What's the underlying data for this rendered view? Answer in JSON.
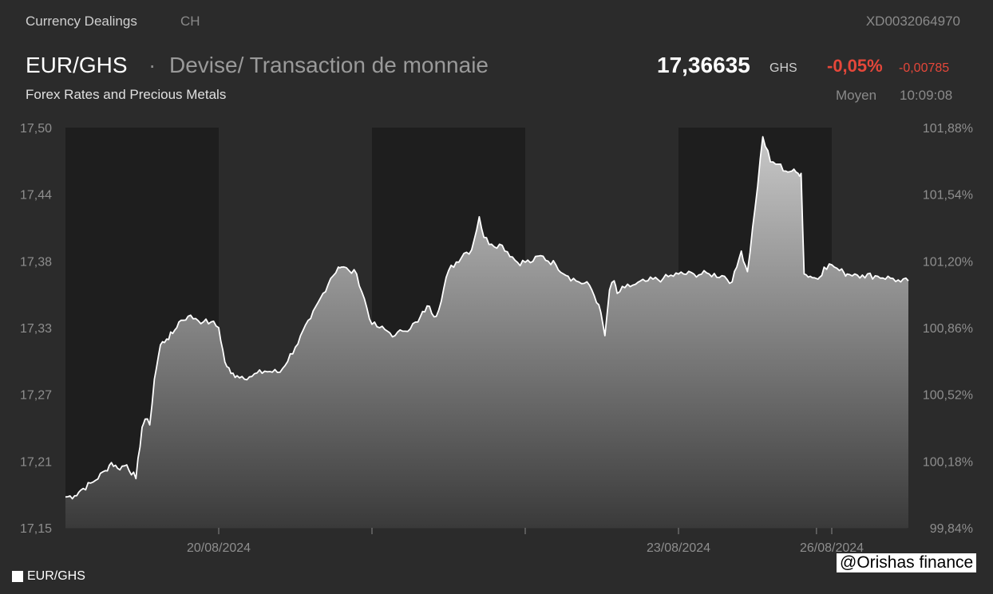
{
  "header": {
    "category": "Currency Dealings",
    "exchange": "CH",
    "isin": "XD0032064970",
    "symbol": "EUR/GHS",
    "separator": "·",
    "name": "Devise/ Transaction de monnaie",
    "subtitle": "Forex Rates and Precious Metals"
  },
  "quote": {
    "price": "17,36635",
    "currency": "GHS",
    "change_pct": "-0,05%",
    "change_abs": "-0,00785",
    "price_type": "Moyen",
    "time": "10:09:08"
  },
  "legend": {
    "label": "EUR/GHS"
  },
  "watermark": "@Orishas finance",
  "colors": {
    "background": "#2b2b2b",
    "night_band": "#1e1e1e",
    "line": "#ffffff",
    "negative": "#e5473a"
  },
  "chart_data": {
    "type": "area",
    "title": "EUR/GHS",
    "ylim": [
      17.15,
      17.5
    ],
    "y_ticks": [
      "17,50",
      "17,44",
      "17,38",
      "17,33",
      "17,27",
      "17,21",
      "17,15"
    ],
    "y_ticks_right": [
      "101,88%",
      "101,54%",
      "101,20%",
      "100,86%",
      "100,52%",
      "100,18%",
      "99,84%"
    ],
    "x_labels": [
      "20/08/2024",
      "23/08/2024",
      "26/08/2024"
    ],
    "xlim": [
      0,
      5.5
    ],
    "x_label_positions": [
      1,
      4,
      5
    ],
    "minor_x_ticks": [
      2,
      3,
      4.9
    ],
    "dark_bands": [
      [
        0,
        1
      ],
      [
        2,
        3
      ],
      [
        4,
        5
      ]
    ],
    "series": [
      {
        "name": "EUR/GHS",
        "x": [
          0,
          0.06,
          0.1,
          0.18,
          0.26,
          0.3,
          0.34,
          0.4,
          0.46,
          0.5,
          0.52,
          0.55,
          0.58,
          0.62,
          0.66,
          0.7,
          0.74,
          0.8,
          0.85,
          0.9,
          0.95,
          1.0,
          1.04,
          1.08,
          1.12,
          1.2,
          1.3,
          1.4,
          1.5,
          1.6,
          1.68,
          1.73,
          1.78,
          1.8,
          1.85,
          1.9,
          2.0,
          2.05,
          2.1,
          2.15,
          2.2,
          2.3,
          2.36,
          2.42,
          2.5,
          2.6,
          2.65,
          2.7,
          2.73,
          2.78,
          2.85,
          2.95,
          3.05,
          3.1,
          3.2,
          3.28,
          3.35,
          3.42,
          3.48,
          3.52,
          3.55,
          3.58,
          3.6,
          3.65,
          3.72,
          3.8,
          3.9,
          4.0,
          4.1,
          4.2,
          4.3,
          4.35,
          4.38,
          4.41,
          4.45,
          4.5,
          4.55,
          4.6,
          4.65,
          4.7,
          4.74,
          4.78,
          4.8,
          4.82,
          4.86,
          4.9,
          4.92,
          4.95,
          5.0,
          5.05,
          5.08,
          5.1,
          5.15,
          5.2,
          5.3,
          5.4,
          5.45,
          5.5
        ],
        "values": [
          17.177,
          17.178,
          17.183,
          17.19,
          17.2,
          17.207,
          17.202,
          17.205,
          17.193,
          17.238,
          17.245,
          17.24,
          17.28,
          17.31,
          17.315,
          17.32,
          17.33,
          17.335,
          17.333,
          17.33,
          17.33,
          17.325,
          17.295,
          17.285,
          17.283,
          17.282,
          17.287,
          17.286,
          17.308,
          17.333,
          17.355,
          17.368,
          17.378,
          17.378,
          17.375,
          17.372,
          17.328,
          17.325,
          17.322,
          17.318,
          17.322,
          17.33,
          17.344,
          17.335,
          17.375,
          17.39,
          17.393,
          17.422,
          17.404,
          17.398,
          17.397,
          17.382,
          17.383,
          17.388,
          17.38,
          17.37,
          17.365,
          17.362,
          17.345,
          17.318,
          17.358,
          17.366,
          17.355,
          17.36,
          17.363,
          17.366,
          17.368,
          17.372,
          17.372,
          17.372,
          17.37,
          17.365,
          17.378,
          17.392,
          17.374,
          17.43,
          17.492,
          17.47,
          17.468,
          17.462,
          17.462,
          17.46,
          17.46,
          17.372,
          17.37,
          17.368,
          17.369,
          17.378,
          17.38,
          17.375,
          17.373,
          17.372,
          17.372,
          17.371,
          17.37,
          17.368,
          17.365,
          17.366
        ]
      }
    ]
  }
}
